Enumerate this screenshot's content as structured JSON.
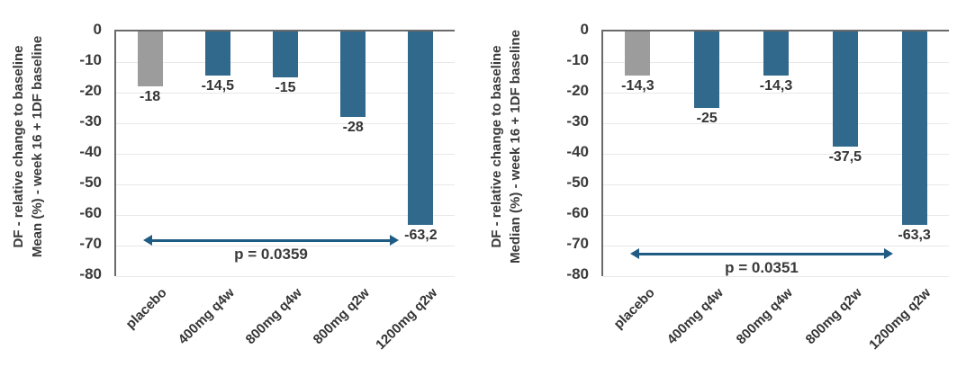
{
  "colors": {
    "bar_blue": "#31698C",
    "bar_gray": "#9C9C9C",
    "axis": "#6a6a6a",
    "grid": "#e8e8e8",
    "text": "#3a3a3a",
    "arrow": "#1f5c83",
    "background": "#ffffff"
  },
  "chart_data": [
    {
      "type": "bar",
      "title": "",
      "ylabel_line1": "DF - relative change to baseline",
      "ylabel_line2": "Mean (%) - week 16 + 1DF baseline",
      "xlabel": "",
      "categories": [
        "placebo",
        "400mg q4w",
        "800mg q4w",
        "800mg q2w",
        "1200mg q2w"
      ],
      "values": [
        -18,
        -14.5,
        -15,
        -28,
        -63.2
      ],
      "value_labels": [
        "-18",
        "-14,5",
        "-15",
        "-28",
        "-63,2"
      ],
      "bar_colors": [
        "gray",
        "blue",
        "blue",
        "blue",
        "blue"
      ],
      "ylim": [
        0,
        -80
      ],
      "ytick_step": 10,
      "yticks": [
        "0",
        "-10",
        "-20",
        "-30",
        "-40",
        "-50",
        "-60",
        "-70",
        "-80"
      ],
      "grid": true,
      "legend": null,
      "annotation": {
        "p_label": "p = 0.0359",
        "arrow_from_category": "placebo",
        "arrow_to_category": "1200mg q2w",
        "arrow_y_approx": -68
      }
    },
    {
      "type": "bar",
      "title": "",
      "ylabel_line1": "DF - relative change to baseline",
      "ylabel_line2": "Median (%) - week 16 + 1DF baseline",
      "xlabel": "",
      "categories": [
        "placebo",
        "400mg q4w",
        "800mg q4w",
        "800mg q2w",
        "1200mg q2w"
      ],
      "values": [
        -14.3,
        -25,
        -14.3,
        -37.5,
        -63.3
      ],
      "value_labels": [
        "-14,3",
        "-25",
        "-14,3",
        "-37,5",
        "-63,3"
      ],
      "bar_colors": [
        "gray",
        "blue",
        "blue",
        "blue",
        "blue"
      ],
      "ylim": [
        0,
        -80
      ],
      "ytick_step": 10,
      "yticks": [
        "0",
        "-10",
        "-20",
        "-30",
        "-40",
        "-50",
        "-60",
        "-70",
        "-80"
      ],
      "grid": true,
      "legend": null,
      "annotation": {
        "p_label": "p = 0.0351",
        "arrow_from_category": "placebo",
        "arrow_to_category": "1200mg q2w",
        "arrow_y_approx": -72
      }
    }
  ]
}
